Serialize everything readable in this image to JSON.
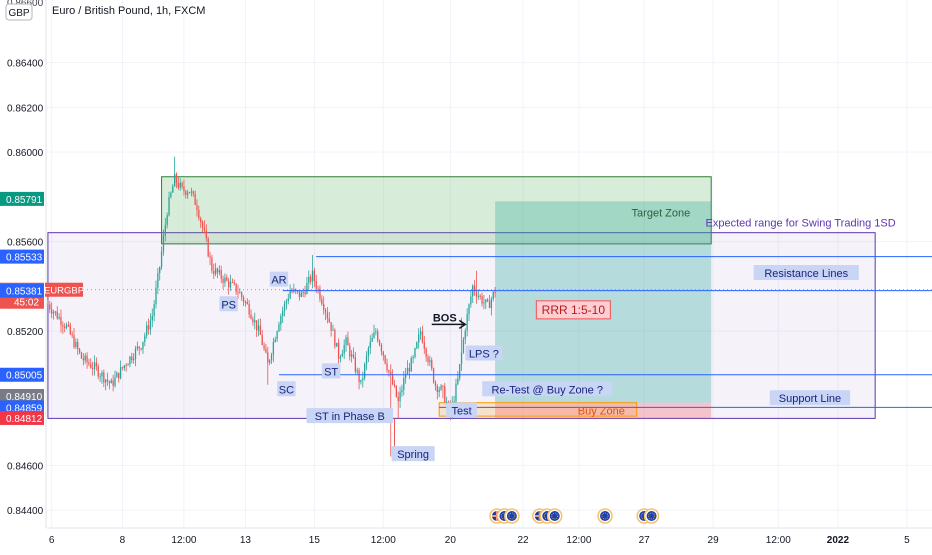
{
  "header": {
    "currency_badge": "GBP",
    "title": "Euro / British Pound, 1h, FXCM"
  },
  "colors": {
    "up": "#26a69a",
    "down": "#ef5350",
    "target_zone": "#4caf50",
    "buy_zone": "#ff9800",
    "position_profit": "#26a69a",
    "position_loss": "#f7a4a8",
    "line_blue": "#2962ff",
    "range_purple": "#5e35b1",
    "label_bg": "#c8d5f5"
  },
  "chart_data": {
    "type": "candlestick",
    "title": "Euro / British Pound, 1h, FXCM",
    "ylim": [
      0.8432,
      0.8668
    ],
    "y_ticks": [
      {
        "label": "0.84400",
        "value": 0.844
      },
      {
        "label": "0.84600",
        "value": 0.846
      },
      {
        "label": "0.85200",
        "value": 0.852
      },
      {
        "label": "0.85600",
        "value": 0.856
      },
      {
        "label": "0.86000",
        "value": 0.86
      },
      {
        "label": "0.86200",
        "value": 0.862
      },
      {
        "label": "0.86400",
        "value": 0.864
      }
    ],
    "top_cut_tick": "0.86600",
    "x_ticks": [
      {
        "label": "6",
        "i": 2
      },
      {
        "label": "8",
        "i": 40
      },
      {
        "label": "12:00",
        "i": 73
      },
      {
        "label": "13",
        "i": 106
      },
      {
        "label": "15",
        "i": 143
      },
      {
        "label": "12:00",
        "i": 180
      },
      {
        "label": "20",
        "i": 216
      },
      {
        "label": "22",
        "i": 255
      },
      {
        "label": "12:00",
        "i": 285
      },
      {
        "label": "27",
        "i": 320
      },
      {
        "label": "29",
        "i": 357
      },
      {
        "label": "12:00",
        "i": 392
      },
      {
        "label": "2022",
        "i": 424
      },
      {
        "label": "5",
        "i": 461
      }
    ],
    "x_count": 475,
    "price_tags": [
      {
        "label": "0.85791",
        "value": 0.85791,
        "color": "#089981"
      },
      {
        "label": "0.85533",
        "value": 0.85533,
        "color": "#2962ff"
      },
      {
        "label": "0.85385",
        "value": 0.85385,
        "color": "#ef5350",
        "sub": "45:02",
        "symbol": "EURGBP"
      },
      {
        "label": "0.85381",
        "value": 0.85381,
        "color": "#2962ff"
      },
      {
        "label": "0.85005",
        "value": 0.85005,
        "color": "#2962ff"
      },
      {
        "label": "0.84910",
        "value": 0.8491,
        "color": "#787b86"
      },
      {
        "label": "0.84859",
        "value": 0.84859,
        "color": "#2962ff"
      },
      {
        "label": "0.84812",
        "value": 0.84812,
        "color": "#f23645"
      }
    ],
    "pivots": [
      [
        0,
        0.8532
      ],
      [
        10,
        0.8522
      ],
      [
        18,
        0.8508
      ],
      [
        26,
        0.8503
      ],
      [
        34,
        0.8496
      ],
      [
        42,
        0.8506
      ],
      [
        50,
        0.8514
      ],
      [
        56,
        0.8527
      ],
      [
        60,
        0.8549
      ],
      [
        64,
        0.8574
      ],
      [
        68,
        0.8588
      ],
      [
        72,
        0.8583
      ],
      [
        76,
        0.8583
      ],
      [
        80,
        0.8576
      ],
      [
        84,
        0.8563
      ],
      [
        88,
        0.8548
      ],
      [
        92,
        0.8545
      ],
      [
        96,
        0.8542
      ],
      [
        102,
        0.8538
      ],
      [
        108,
        0.853
      ],
      [
        114,
        0.8518
      ],
      [
        118,
        0.8505
      ],
      [
        124,
        0.8525
      ],
      [
        130,
        0.8538
      ],
      [
        136,
        0.8536
      ],
      [
        142,
        0.8545
      ],
      [
        148,
        0.8532
      ],
      [
        152,
        0.8522
      ],
      [
        156,
        0.8509
      ],
      [
        160,
        0.8515
      ],
      [
        164,
        0.8506
      ],
      [
        168,
        0.8496
      ],
      [
        172,
        0.8512
      ],
      [
        176,
        0.852
      ],
      [
        180,
        0.851
      ],
      [
        184,
        0.8499
      ],
      [
        188,
        0.8488
      ],
      [
        192,
        0.8501
      ],
      [
        196,
        0.8507
      ],
      [
        200,
        0.852
      ],
      [
        204,
        0.8508
      ],
      [
        208,
        0.8496
      ],
      [
        212,
        0.8493
      ],
      [
        216,
        0.8483
      ],
      [
        220,
        0.8498
      ],
      [
        224,
        0.8522
      ],
      [
        228,
        0.854
      ],
      [
        232,
        0.8535
      ],
      [
        236,
        0.8531
      ],
      [
        240,
        0.8538
      ]
    ],
    "wick_highs": [
      [
        68,
        0.8598
      ],
      [
        142,
        0.8554
      ],
      [
        222,
        0.8526
      ],
      [
        230,
        0.8547
      ]
    ],
    "wick_lows": [
      [
        184,
        0.8464
      ],
      [
        188,
        0.8481
      ],
      [
        118,
        0.8496
      ],
      [
        212,
        0.849
      ]
    ],
    "shapes": {
      "target_zone": {
        "i1": 61,
        "i2": 356,
        "top": 0.8589,
        "bottom": 0.8559
      },
      "range_box": {
        "i1": 0,
        "i2": 444,
        "top": 0.8564,
        "bottom": 0.8481
      },
      "position": {
        "i1": 240,
        "i2": 356,
        "target": 0.8578,
        "entry": 0.8488,
        "stop": 0.8481
      },
      "buy_zone": {
        "i1": 210,
        "i2": 316,
        "top": 0.8488,
        "bottom": 0.8482
      },
      "resistance_lines": [
        {
          "i1": 144,
          "i2": 475,
          "value": 0.85533
        },
        {
          "i1": 126,
          "i2": 475,
          "value": 0.85381
        }
      ],
      "support_lines": [
        {
          "i1": 124,
          "i2": 475,
          "value": 0.85005
        },
        {
          "i1": 210,
          "i2": 475,
          "value": 0.84859
        }
      ],
      "spring_wick": {
        "i": 186,
        "low": 0.8464,
        "high": 0.8481
      },
      "bos_arrow": {
        "i1": 206,
        "i2": 224,
        "value": 0.8523
      }
    },
    "annotations": [
      {
        "text": "Target Zone",
        "i": 329,
        "value": 0.8573,
        "kind": "plain"
      },
      {
        "text": "Expected range for Swing Trading 1SD",
        "i": 404,
        "value": 0.85685,
        "kind": "plain-purple"
      },
      {
        "text": "Resistance Lines",
        "i": 407,
        "value": 0.8546,
        "kind": "label"
      },
      {
        "text": "Support Line",
        "i": 409,
        "value": 0.849,
        "kind": "label"
      },
      {
        "text": "RRR 1:5-10",
        "i": 282,
        "value": 0.85295,
        "kind": "rrr"
      },
      {
        "text": "BOS",
        "i": 213,
        "value": 0.8526,
        "kind": "bold"
      },
      {
        "text": "LPS ?",
        "i": 234,
        "value": 0.851,
        "kind": "label"
      },
      {
        "text": "Re-Test @ Buy Zone ?",
        "i": 268,
        "value": 0.8494,
        "kind": "label"
      },
      {
        "text": "Buy Zone",
        "i": 297,
        "value": 0.84845,
        "kind": "plain-orange"
      },
      {
        "text": "Test",
        "i": 222,
        "value": 0.84845,
        "kind": "label"
      },
      {
        "text": "AR",
        "i": 124,
        "value": 0.8543,
        "kind": "label"
      },
      {
        "text": "PS",
        "i": 97,
        "value": 0.8532,
        "kind": "label"
      },
      {
        "text": "ST",
        "i": 152,
        "value": 0.8502,
        "kind": "label"
      },
      {
        "text": "SC",
        "i": 128,
        "value": 0.8494,
        "kind": "label"
      },
      {
        "text": "ST in Phase B",
        "i": 162,
        "value": 0.8482,
        "kind": "label"
      },
      {
        "text": "Spring",
        "i": 196,
        "value": 0.8465,
        "kind": "label"
      }
    ],
    "event_icons": [
      {
        "i": 241,
        "flag": "uk"
      },
      {
        "i": 245,
        "flag": "eu"
      },
      {
        "i": 249,
        "flag": "eu"
      },
      {
        "i": 264,
        "flag": "uk"
      },
      {
        "i": 268,
        "flag": "eu"
      },
      {
        "i": 272,
        "flag": "eu"
      },
      {
        "i": 299,
        "flag": "eu"
      },
      {
        "i": 320,
        "flag": "eu"
      },
      {
        "i": 324,
        "flag": "eu"
      }
    ]
  }
}
